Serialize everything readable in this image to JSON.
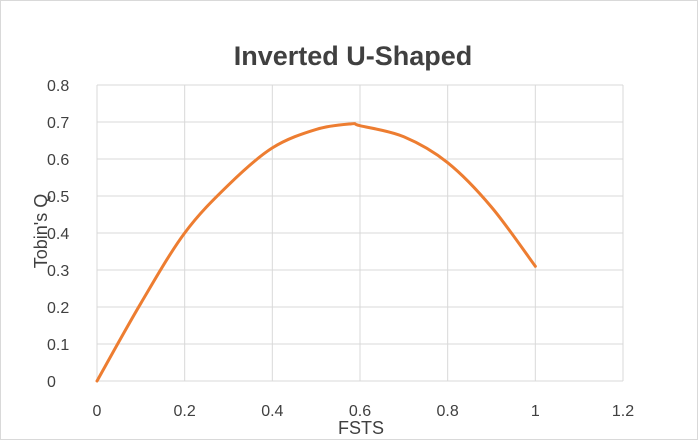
{
  "chart_data": {
    "type": "line",
    "title": "Inverted U-Shaped",
    "xlabel": "FSTS",
    "ylabel": "Tobin's Q",
    "xlim": [
      0,
      1.2
    ],
    "ylim": [
      0,
      0.8
    ],
    "x_ticks": [
      "0",
      "0.2",
      "0.4",
      "0.6",
      "0.8",
      "1",
      "1.2"
    ],
    "y_ticks": [
      "0",
      "0.1",
      "0.2",
      "0.3",
      "0.4",
      "0.5",
      "0.6",
      "0.7",
      "0.8"
    ],
    "grid": true,
    "legend": "none",
    "series": [
      {
        "color": "#ED7D31",
        "x": [
          0,
          0.1,
          0.2,
          0.3,
          0.4,
          0.5,
          0.58,
          0.6,
          0.7,
          0.8,
          0.9,
          1.0
        ],
        "y": [
          0,
          0.21,
          0.4,
          0.53,
          0.63,
          0.68,
          0.695,
          0.69,
          0.66,
          0.59,
          0.47,
          0.31
        ]
      }
    ]
  }
}
